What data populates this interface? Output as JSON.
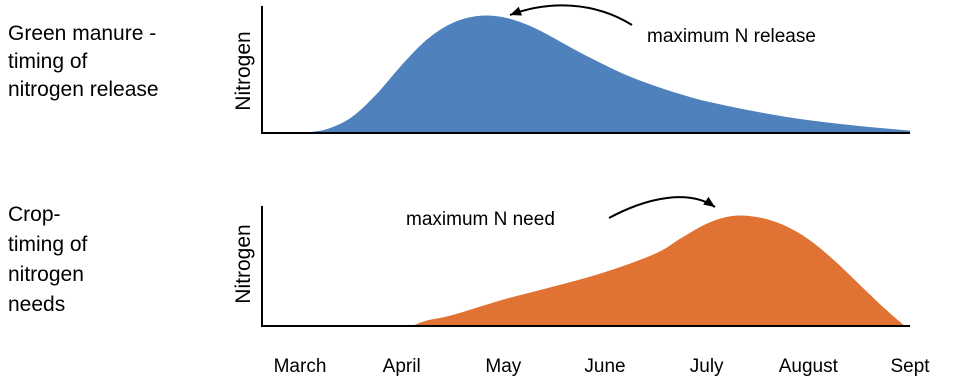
{
  "colors": {
    "release": "#4f81bd",
    "need": "#e07334",
    "axis": "#000000"
  },
  "chart_data": [
    {
      "type": "area",
      "title_lines": [
        "Green manure -",
        "timing of",
        "nitrogen release"
      ],
      "ylabel": "Nitrogen",
      "xlabel": "",
      "x_ticks": [
        "March",
        "April",
        "May",
        "June",
        "July",
        "August",
        "Sept"
      ],
      "xlim": [
        0,
        6
      ],
      "ylim": [
        0,
        1
      ],
      "series": [
        {
          "x": [
            0,
            0.25,
            0.5,
            0.75,
            1.0,
            1.25,
            1.5,
            1.75,
            2.0,
            2.25,
            2.5,
            2.75,
            3.0,
            3.25,
            3.5,
            3.75,
            4.0,
            4.5,
            5.0,
            5.5,
            6.0
          ],
          "y": [
            0.0,
            0.03,
            0.13,
            0.33,
            0.58,
            0.8,
            0.94,
            1.0,
            0.99,
            0.92,
            0.81,
            0.69,
            0.58,
            0.48,
            0.4,
            0.33,
            0.27,
            0.18,
            0.11,
            0.06,
            0.02
          ]
        }
      ],
      "annotation": {
        "text": "maximum N release",
        "x": 1.75,
        "y": 1.0
      }
    },
    {
      "type": "area",
      "title_lines": [
        "Crop-",
        "timing of",
        "nitrogen",
        "needs"
      ],
      "ylabel": "Nitrogen",
      "xlabel": "",
      "x_ticks": [
        "March",
        "April",
        "May",
        "June",
        "July",
        "August",
        "Sept"
      ],
      "xlim": [
        0,
        6
      ],
      "ylim": [
        0,
        1
      ],
      "series": [
        {
          "x": [
            1.1,
            1.25,
            1.5,
            2.0,
            2.5,
            3.0,
            3.5,
            3.75,
            4.0,
            4.25,
            4.5,
            4.75,
            5.0,
            5.25,
            5.5,
            5.75,
            5.95
          ],
          "y": [
            0.0,
            0.05,
            0.1,
            0.24,
            0.36,
            0.49,
            0.66,
            0.8,
            0.93,
            1.0,
            0.99,
            0.92,
            0.79,
            0.6,
            0.38,
            0.16,
            0.0
          ]
        }
      ],
      "annotation": {
        "text": "maximum N need",
        "x": 4.25,
        "y": 1.0
      }
    }
  ]
}
